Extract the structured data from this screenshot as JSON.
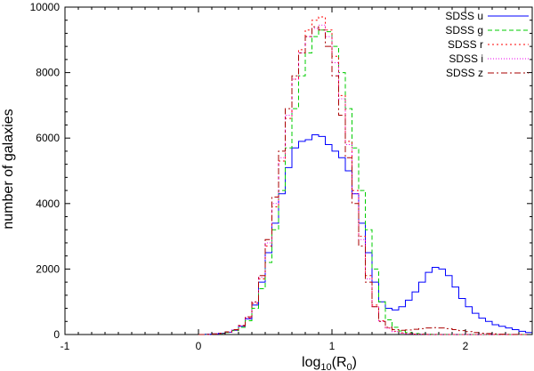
{
  "chart_data": {
    "type": "line",
    "xlabel": "log10(R0)",
    "ylabel": "number of galaxies",
    "xlim": [
      -1,
      2.5
    ],
    "ylim": [
      0,
      10000
    ],
    "xticks": [
      {
        "value": -1,
        "label": "-1"
      },
      {
        "value": 0,
        "label": "0"
      },
      {
        "value": 1,
        "label": "1"
      },
      {
        "value": 2,
        "label": "2"
      }
    ],
    "yticks": [
      {
        "value": 0,
        "label": "0"
      },
      {
        "value": 2000,
        "label": "2000"
      },
      {
        "value": 4000,
        "label": "4000"
      },
      {
        "value": 6000,
        "label": "6000"
      },
      {
        "value": 8000,
        "label": "8000"
      },
      {
        "value": 10000,
        "label": "10000"
      }
    ],
    "legend_position": "top-right",
    "bin_edges": [
      0.0,
      0.05,
      0.1,
      0.15,
      0.2,
      0.25,
      0.3,
      0.35,
      0.4,
      0.45,
      0.5,
      0.55,
      0.6,
      0.65,
      0.7,
      0.75,
      0.8,
      0.85,
      0.9,
      0.95,
      1.0,
      1.05,
      1.1,
      1.15,
      1.2,
      1.25,
      1.3,
      1.35,
      1.4,
      1.45,
      1.5,
      1.55,
      1.6,
      1.65,
      1.7,
      1.75,
      1.8,
      1.85,
      1.9,
      1.95,
      2.0,
      2.05,
      2.1,
      2.15,
      2.2,
      2.25,
      2.3,
      2.35,
      2.4,
      2.45,
      2.5
    ],
    "series": [
      {
        "name": "SDSS u",
        "color": "#0000ff",
        "dash": "",
        "values": [
          0,
          10,
          20,
          40,
          70,
          130,
          250,
          480,
          900,
          1600,
          2500,
          3400,
          4300,
          5100,
          5700,
          5900,
          5950,
          6100,
          6050,
          5800,
          5600,
          5400,
          5000,
          4300,
          3400,
          2500,
          1600,
          1000,
          800,
          750,
          850,
          1050,
          1300,
          1600,
          1900,
          2050,
          2000,
          1800,
          1450,
          1100,
          850,
          650,
          500,
          400,
          300,
          250,
          200,
          150,
          100,
          60
        ]
      },
      {
        "name": "SDSS g",
        "color": "#00cc00",
        "dash": "5,3",
        "values": [
          0,
          5,
          15,
          30,
          60,
          120,
          220,
          420,
          800,
          1400,
          2200,
          3200,
          4400,
          5700,
          6900,
          7900,
          8600,
          9100,
          9300,
          9250,
          8800,
          8000,
          6900,
          5700,
          4400,
          3200,
          2000,
          1000,
          450,
          220,
          110,
          60,
          30,
          20,
          10,
          5,
          5,
          5,
          0,
          0,
          0,
          0,
          0,
          0,
          0,
          0,
          0,
          0,
          0,
          0
        ]
      },
      {
        "name": "SDSS r",
        "color": "#ff0000",
        "dash": "2,3",
        "values": [
          0,
          5,
          15,
          35,
          70,
          140,
          260,
          500,
          950,
          1700,
          2700,
          3900,
          5300,
          6600,
          7800,
          8700,
          9300,
          9600,
          9700,
          9300,
          8500,
          7300,
          5900,
          4400,
          3000,
          1800,
          900,
          420,
          200,
          100,
          50,
          30,
          15,
          10,
          5,
          5,
          0,
          0,
          0,
          0,
          0,
          0,
          0,
          0,
          0,
          0,
          0,
          0,
          0,
          0
        ]
      },
      {
        "name": "SDSS i",
        "color": "#ee00ee",
        "dash": "1,2",
        "values": [
          0,
          5,
          15,
          35,
          70,
          140,
          270,
          520,
          980,
          1750,
          2800,
          4000,
          5400,
          6700,
          7800,
          8600,
          9100,
          9350,
          9450,
          9100,
          8300,
          7200,
          5800,
          4300,
          2900,
          1700,
          850,
          400,
          190,
          90,
          45,
          25,
          15,
          10,
          5,
          0,
          0,
          0,
          0,
          0,
          0,
          0,
          0,
          0,
          0,
          0,
          0,
          0,
          0,
          0
        ]
      },
      {
        "name": "SDSS z",
        "color": "#aa0000",
        "dash": "7,3,2,3",
        "values": [
          0,
          5,
          20,
          40,
          80,
          150,
          280,
          540,
          1000,
          1800,
          2900,
          4200,
          5600,
          6900,
          7900,
          8600,
          9100,
          9400,
          9300,
          8800,
          7900,
          6700,
          5400,
          4000,
          2700,
          1600,
          850,
          400,
          220,
          150,
          130,
          140,
          160,
          180,
          200,
          210,
          200,
          180,
          150,
          120,
          90,
          60,
          40,
          30,
          20,
          10,
          5,
          5,
          0,
          0
        ]
      }
    ]
  }
}
